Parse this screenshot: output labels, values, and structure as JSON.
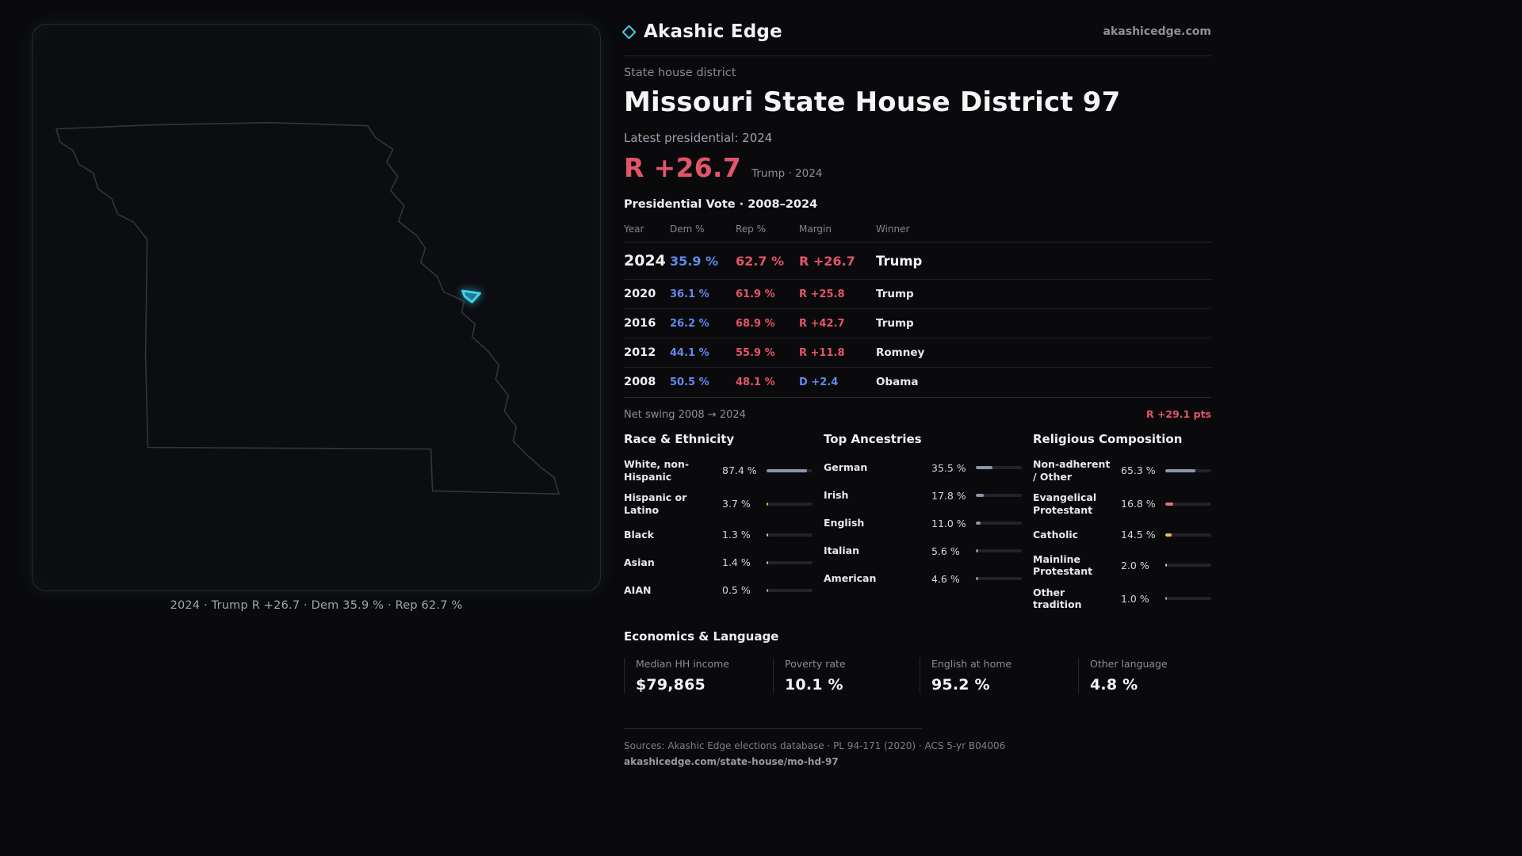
{
  "theme": {
    "accent_cyan": "#3fd2f2",
    "dem_blue": "#6189ef",
    "rep_red": "#e25568"
  },
  "brand": {
    "name": "Akashic Edge",
    "site": "akashicedge.com"
  },
  "map": {
    "caption": "2024 · Trump R +26.7 · Dem 35.9 % · Rep 62.7 %"
  },
  "profile": {
    "kicker": "State house district",
    "title": "Missouri State House District 97",
    "latest_label": "Latest presidential: 2024",
    "headline_margin": "R +26.7",
    "headline_sub": "Trump · 2024"
  },
  "vote_table": {
    "title": "Presidential Vote · 2008–2024",
    "headers": {
      "year": "Year",
      "dem": "Dem %",
      "rep": "Rep %",
      "margin": "Margin",
      "winner": "Winner"
    },
    "rows": [
      {
        "year": "2024",
        "dem": "35.9 %",
        "rep": "62.7 %",
        "margin": "R +26.7",
        "margin_color": "#e25568",
        "winner": "Trump"
      },
      {
        "year": "2020",
        "dem": "36.1 %",
        "rep": "61.9 %",
        "margin": "R +25.8",
        "margin_color": "#e25568",
        "winner": "Trump"
      },
      {
        "year": "2016",
        "dem": "26.2 %",
        "rep": "68.9 %",
        "margin": "R +42.7",
        "margin_color": "#e25568",
        "winner": "Trump"
      },
      {
        "year": "2012",
        "dem": "44.1 %",
        "rep": "55.9 %",
        "margin": "R +11.8",
        "margin_color": "#e25568",
        "winner": "Romney"
      },
      {
        "year": "2008",
        "dem": "50.5 %",
        "rep": "48.1 %",
        "margin": "D +2.4",
        "margin_color": "#6189ef",
        "winner": "Obama"
      }
    ],
    "net_swing_label": "Net swing 2008 → 2024",
    "net_swing_value": "R +29.1 pts"
  },
  "demographics": {
    "race": {
      "title": "Race & Ethnicity",
      "rows": [
        {
          "label": "White, non-Hispanic",
          "value": "87.4 %",
          "pct": 87.4,
          "color": "#8b95ad"
        },
        {
          "label": "Hispanic or Latino",
          "value": "3.7 %",
          "pct": 3.7,
          "color": "#e3c24e"
        },
        {
          "label": "Black",
          "value": "1.3 %",
          "pct": 1.3,
          "color": "#c9c9cf"
        },
        {
          "label": "Asian",
          "value": "1.4 %",
          "pct": 1.4,
          "color": "#a9cdb8"
        },
        {
          "label": "AIAN",
          "value": "0.5 %",
          "pct": 0.5,
          "color": "#a8a8b0"
        }
      ]
    },
    "ancestry": {
      "title": "Top Ancestries",
      "rows": [
        {
          "label": "German",
          "value": "35.5 %",
          "pct": 35.5,
          "color": "#8b95ad"
        },
        {
          "label": "Irish",
          "value": "17.8 %",
          "pct": 17.8,
          "color": "#8b95ad"
        },
        {
          "label": "English",
          "value": "11.0 %",
          "pct": 11.0,
          "color": "#8b95ad"
        },
        {
          "label": "Italian",
          "value": "5.6 %",
          "pct": 5.6,
          "color": "#8b95ad"
        },
        {
          "label": "American",
          "value": "4.6 %",
          "pct": 4.6,
          "color": "#8b95ad"
        }
      ]
    },
    "religion": {
      "title": "Religious Composition",
      "rows": [
        {
          "label": "Non-adherent / Other",
          "value": "65.3 %",
          "pct": 65.3,
          "color": "#8b95ad"
        },
        {
          "label": "Evangelical Protestant",
          "value": "16.8 %",
          "pct": 16.8,
          "color": "#e0707e"
        },
        {
          "label": "Catholic",
          "value": "14.5 %",
          "pct": 14.5,
          "color": "#e3c24e"
        },
        {
          "label": "Mainline Protestant",
          "value": "2.0 %",
          "pct": 2.0,
          "color": "#c9c9cf"
        },
        {
          "label": "Other tradition",
          "value": "1.0 %",
          "pct": 1.0,
          "color": "#a8a8b0"
        }
      ]
    }
  },
  "economics": {
    "title": "Economics & Language",
    "stats": [
      {
        "label": "Median HH income",
        "value": "$79,865"
      },
      {
        "label": "Poverty rate",
        "value": "10.1 %"
      },
      {
        "label": "English at home",
        "value": "95.2 %"
      },
      {
        "label": "Other language",
        "value": "4.8 %"
      }
    ]
  },
  "footer": {
    "sources": "Sources: Akashic Edge elections database · PL 94-171 (2020) · ACS 5-yr B04006",
    "permalink": "akashicedge.com/state-house/mo-hd-97"
  },
  "chart_data": [
    {
      "type": "table",
      "title": "Presidential Vote · 2008–2024",
      "columns": [
        "Year",
        "Dem %",
        "Rep %",
        "Margin",
        "Winner"
      ],
      "rows": [
        [
          2024,
          35.9,
          62.7,
          "R +26.7",
          "Trump"
        ],
        [
          2020,
          36.1,
          61.9,
          "R +25.8",
          "Trump"
        ],
        [
          2016,
          26.2,
          68.9,
          "R +42.7",
          "Trump"
        ],
        [
          2012,
          44.1,
          55.9,
          "R +11.8",
          "Romney"
        ],
        [
          2008,
          50.5,
          48.1,
          "D +2.4",
          "Obama"
        ]
      ],
      "note": "Net swing 2008 → 2024: R +29.1 pts"
    },
    {
      "type": "bar",
      "title": "Race & Ethnicity",
      "categories": [
        "White, non-Hispanic",
        "Hispanic or Latino",
        "Black",
        "Asian",
        "AIAN"
      ],
      "values": [
        87.4,
        3.7,
        1.3,
        1.4,
        0.5
      ],
      "unit": "%",
      "xlim": [
        0,
        100
      ],
      "orientation": "horizontal"
    },
    {
      "type": "bar",
      "title": "Top Ancestries",
      "categories": [
        "German",
        "Irish",
        "English",
        "Italian",
        "American"
      ],
      "values": [
        35.5,
        17.8,
        11.0,
        5.6,
        4.6
      ],
      "unit": "%",
      "xlim": [
        0,
        100
      ],
      "orientation": "horizontal"
    },
    {
      "type": "bar",
      "title": "Religious Composition",
      "categories": [
        "Non-adherent / Other",
        "Evangelical Protestant",
        "Catholic",
        "Mainline Protestant",
        "Other tradition"
      ],
      "values": [
        65.3,
        16.8,
        14.5,
        2.0,
        1.0
      ],
      "unit": "%",
      "xlim": [
        0,
        100
      ],
      "orientation": "horizontal"
    },
    {
      "type": "table",
      "title": "Economics & Language",
      "columns": [
        "Median HH income",
        "Poverty rate",
        "English at home",
        "Other language"
      ],
      "rows": [
        [
          "$79,865",
          "10.1 %",
          "95.2 %",
          "4.8 %"
        ]
      ]
    }
  ]
}
